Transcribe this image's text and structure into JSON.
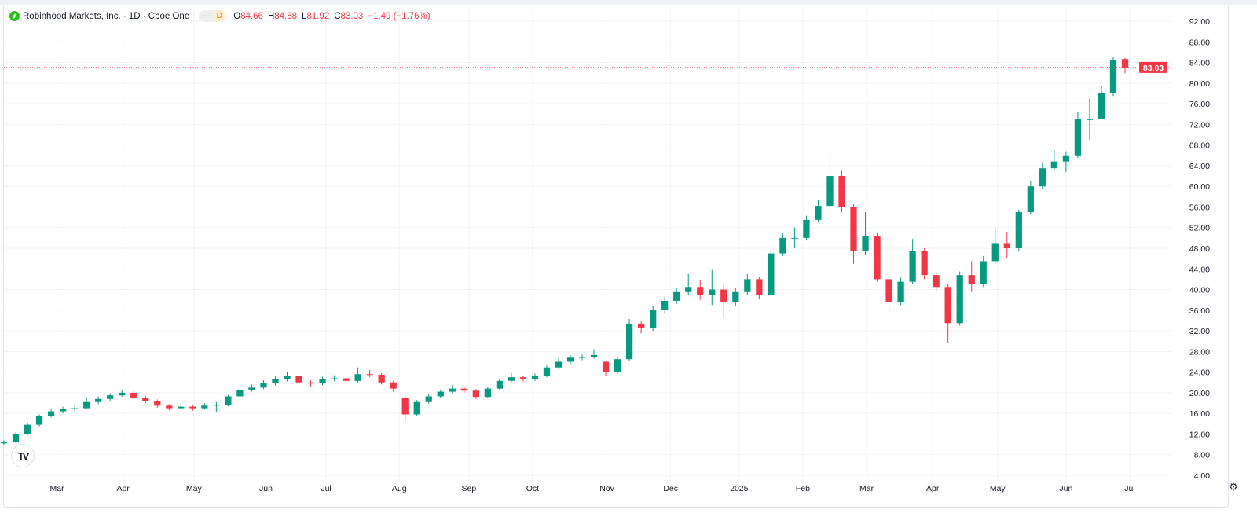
{
  "header": {
    "title": "Robinhood Markets, Inc. · 1D · Cboe One",
    "badge_left": "—",
    "badge_right": "D",
    "ohlc": {
      "o_label": "O",
      "o": "84.66",
      "h_label": "H",
      "h": "84.88",
      "l_label": "L",
      "l": "81.92",
      "c_label": "C",
      "c": "83.03",
      "change": "−1.49 (−1.76%)"
    }
  },
  "icons": {
    "logo": "robinhood-feather-icon",
    "watermark": "tradingview-logo-icon",
    "settings": "settings-gear-icon"
  },
  "watermark": "TV",
  "colors": {
    "up": "#089981",
    "down": "#f23645",
    "grid": "#f0f3fa",
    "text": "#131722"
  },
  "chart_data": {
    "type": "candlestick",
    "interval": "1D",
    "ylim": [
      2.93,
      94.59
    ],
    "yticks": [
      "4.00",
      "8.00",
      "12.00",
      "16.00",
      "20.00",
      "24.00",
      "28.00",
      "32.00",
      "36.00",
      "40.00",
      "44.00",
      "48.00",
      "52.00",
      "56.00",
      "60.00",
      "64.00",
      "68.00",
      "72.00",
      "76.00",
      "80.00",
      "84.00",
      "88.00",
      "92.00"
    ],
    "last_price": 83.03,
    "last_price_label": "83.03",
    "xticks": [
      {
        "label": "Mar",
        "at": 4.5
      },
      {
        "label": "Apr",
        "at": 10.1
      },
      {
        "label": "May",
        "at": 16.1
      },
      {
        "label": "Jun",
        "at": 22.2
      },
      {
        "label": "Jul",
        "at": 27.3
      },
      {
        "label": "Aug",
        "at": 33.5
      },
      {
        "label": "Sep",
        "at": 39.4
      },
      {
        "label": "Oct",
        "at": 44.8
      },
      {
        "label": "Nov",
        "at": 51.1
      },
      {
        "label": "Dec",
        "at": 56.5
      },
      {
        "label": "2025",
        "at": 62.3
      },
      {
        "label": "Feb",
        "at": 67.7
      },
      {
        "label": "Mar",
        "at": 73.1
      },
      {
        "label": "Apr",
        "at": 78.7
      },
      {
        "label": "May",
        "at": 84.2
      },
      {
        "label": "Jun",
        "at": 90.0
      },
      {
        "label": "Jul",
        "at": 95.4
      }
    ],
    "candles_ohlc": [
      [
        10.2,
        10.8,
        9.9,
        10.5
      ],
      [
        10.5,
        12.3,
        10.3,
        12
      ],
      [
        12,
        14.1,
        11.8,
        13.8
      ],
      [
        13.8,
        15.8,
        13.5,
        15.5
      ],
      [
        15.5,
        16.8,
        15.2,
        16.4
      ],
      [
        16.4,
        17.3,
        16.0,
        16.8
      ],
      [
        16.8,
        17.5,
        16.4,
        17.0
      ],
      [
        17.0,
        19.2,
        16.8,
        18.2
      ],
      [
        18.2,
        19.3,
        17.8,
        18.8
      ],
      [
        18.8,
        19.9,
        18.4,
        19.5
      ],
      [
        19.5,
        20.6,
        19.2,
        20.0
      ],
      [
        20.0,
        20.3,
        18.7,
        19.0
      ],
      [
        19.0,
        19.4,
        18.0,
        18.4
      ],
      [
        18.4,
        18.7,
        17.1,
        17.5
      ],
      [
        17.5,
        17.8,
        16.6,
        17.0
      ],
      [
        17.0,
        17.9,
        16.8,
        17.3
      ],
      [
        17.3,
        17.6,
        16.5,
        17.0
      ],
      [
        17.0,
        18.0,
        16.7,
        17.5
      ],
      [
        17.5,
        18.2,
        16.2,
        17.7
      ],
      [
        17.7,
        19.6,
        17.4,
        19.3
      ],
      [
        19.3,
        21.2,
        19.0,
        20.6
      ],
      [
        20.6,
        21.6,
        20.2,
        21.0
      ],
      [
        21.0,
        22.4,
        20.7,
        21.8
      ],
      [
        21.8,
        23.2,
        21.4,
        22.6
      ],
      [
        22.6,
        24.0,
        22.2,
        23.3
      ],
      [
        23.3,
        23.6,
        21.6,
        22.0
      ],
      [
        22.0,
        22.4,
        21.2,
        21.8
      ],
      [
        21.8,
        23.1,
        21.5,
        22.7
      ],
      [
        22.7,
        23.4,
        22.2,
        22.8
      ],
      [
        22.8,
        23.1,
        21.9,
        22.3
      ],
      [
        22.3,
        24.9,
        22.0,
        23.6
      ],
      [
        23.6,
        24.4,
        23.0,
        23.5
      ],
      [
        23.5,
        23.8,
        21.6,
        22.0
      ],
      [
        22.0,
        22.3,
        20.2,
        20.8
      ],
      [
        19.0,
        19.4,
        14.5,
        15.8
      ],
      [
        15.8,
        18.6,
        15.5,
        18.2
      ],
      [
        18.2,
        19.7,
        17.9,
        19.3
      ],
      [
        19.3,
        20.6,
        19.0,
        20.2
      ],
      [
        20.2,
        21.5,
        19.9,
        20.8
      ],
      [
        20.8,
        21.1,
        20.0,
        20.4
      ],
      [
        20.4,
        20.7,
        18.8,
        19.2
      ],
      [
        19.2,
        21.2,
        18.9,
        20.8
      ],
      [
        20.8,
        22.7,
        20.5,
        22.3
      ],
      [
        22.3,
        23.8,
        22.0,
        23.0
      ],
      [
        23.0,
        23.3,
        22.2,
        22.7
      ],
      [
        22.7,
        23.7,
        22.3,
        23.3
      ],
      [
        23.3,
        25.3,
        23.0,
        24.9
      ],
      [
        24.9,
        26.6,
        24.6,
        26.0
      ],
      [
        26.0,
        27.3,
        25.6,
        26.8
      ],
      [
        26.8,
        27.4,
        26.3,
        26.9
      ],
      [
        26.9,
        28.4,
        26.6,
        27.3
      ],
      [
        26.0,
        26.2,
        23.3,
        24.0
      ],
      [
        24.0,
        27.0,
        23.7,
        26.5
      ],
      [
        26.5,
        34.3,
        26.2,
        33.4
      ],
      [
        33.4,
        34.0,
        31.5,
        32.5
      ],
      [
        32.5,
        36.8,
        32.0,
        36.0
      ],
      [
        36.0,
        38.6,
        35.4,
        37.8
      ],
      [
        37.8,
        40.4,
        37.2,
        39.5
      ],
      [
        39.5,
        43.0,
        39.0,
        40.5
      ],
      [
        40.5,
        41.8,
        38.0,
        39.0
      ],
      [
        39.0,
        43.8,
        37.0,
        40.0
      ],
      [
        40.0,
        41.0,
        34.5,
        37.5
      ],
      [
        37.5,
        40.4,
        36.8,
        39.5
      ],
      [
        39.5,
        43.0,
        39.0,
        42.0
      ],
      [
        42.0,
        42.5,
        38.2,
        39.0
      ],
      [
        39.0,
        47.8,
        38.8,
        47.0
      ],
      [
        47.0,
        51.0,
        46.5,
        50.0
      ],
      [
        50.0,
        52.0,
        48.0,
        50.0
      ],
      [
        50.0,
        54.3,
        49.5,
        53.5
      ],
      [
        53.5,
        57.4,
        53.0,
        56.2
      ],
      [
        56.2,
        66.8,
        53.0,
        62.0
      ],
      [
        62.0,
        63.0,
        55.0,
        56.0
      ],
      [
        56.0,
        56.5,
        45.0,
        47.4
      ],
      [
        47.4,
        55.0,
        46.8,
        50.4
      ],
      [
        50.4,
        51.0,
        41.5,
        42.0
      ],
      [
        42.0,
        43.0,
        35.5,
        37.5
      ],
      [
        37.5,
        42.3,
        37.0,
        41.5
      ],
      [
        41.5,
        49.8,
        41.0,
        47.5
      ],
      [
        47.5,
        48.0,
        42.0,
        42.8
      ],
      [
        42.8,
        43.5,
        39.5,
        40.5
      ],
      [
        40.5,
        41.0,
        29.7,
        33.5
      ],
      [
        33.5,
        43.5,
        33.0,
        42.8
      ],
      [
        42.8,
        45.5,
        39.5,
        41.0
      ],
      [
        41.0,
        46.5,
        40.5,
        45.5
      ],
      [
        45.5,
        51.5,
        45.0,
        49.0
      ],
      [
        49.0,
        51.2,
        46.0,
        48.0
      ],
      [
        48.0,
        55.5,
        47.5,
        55.0
      ],
      [
        55.0,
        61.0,
        54.5,
        60.0
      ],
      [
        60.0,
        64.5,
        59.5,
        63.5
      ],
      [
        63.5,
        67.0,
        63.0,
        64.8
      ],
      [
        64.8,
        66.8,
        62.8,
        66.0
      ],
      [
        66.0,
        74.5,
        65.5,
        73.0
      ],
      [
        73.0,
        77.0,
        69.0,
        73.0
      ],
      [
        73.0,
        79.5,
        73.0,
        78.0
      ],
      [
        78.0,
        85.0,
        77.5,
        84.52
      ],
      [
        84.66,
        84.88,
        81.92,
        83.03
      ]
    ]
  }
}
